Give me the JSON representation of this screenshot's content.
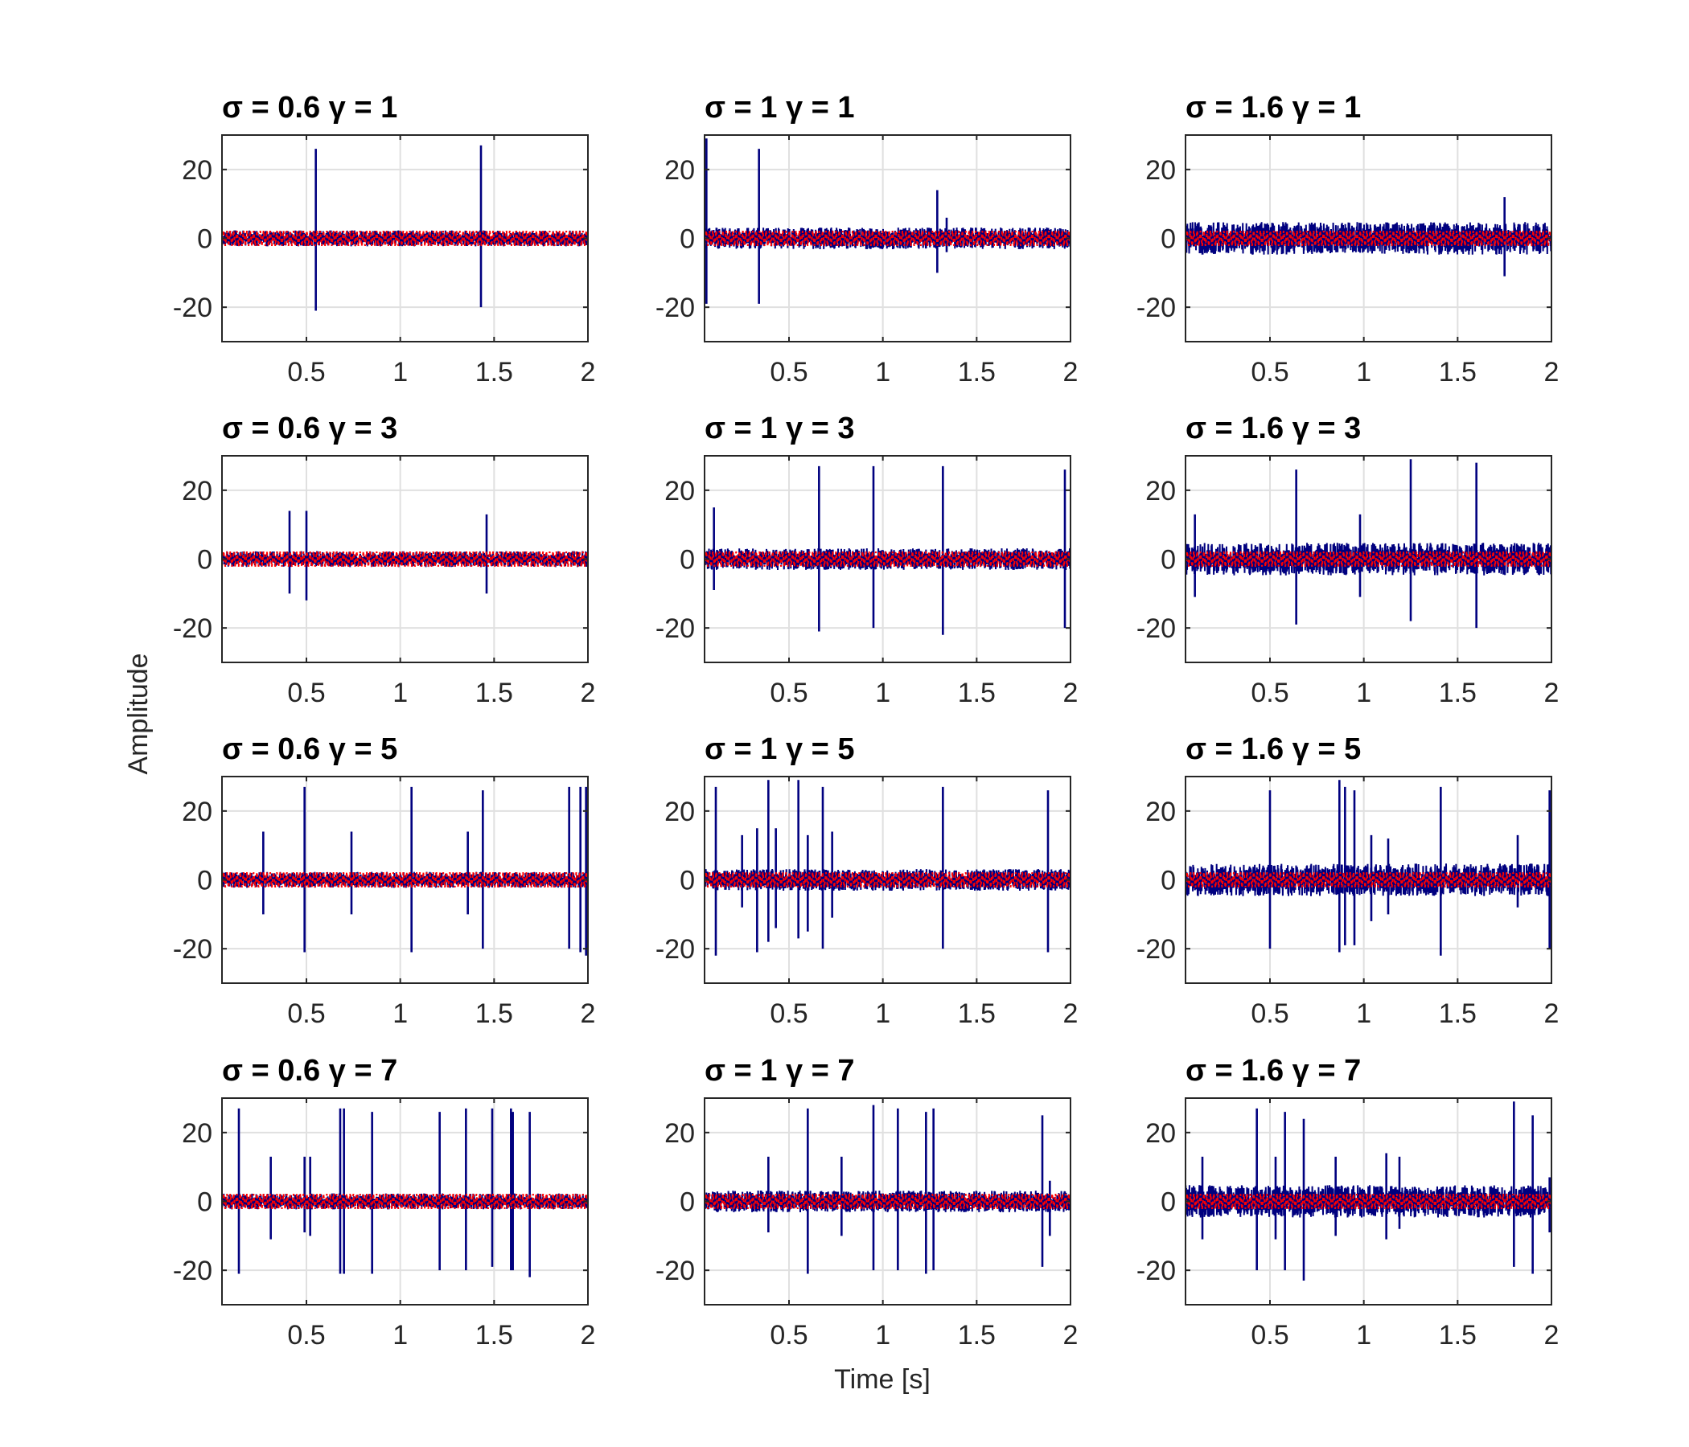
{
  "chart_data": {
    "type": "line",
    "layout": "4x3 grid of subplots",
    "xlabel": "Time [s]",
    "ylabel": "Amplitude",
    "xlim": [
      0.05,
      2
    ],
    "ylim": [
      -30,
      30
    ],
    "x_ticks": [
      0.5,
      1,
      1.5,
      2
    ],
    "x_tick_labels": [
      "0.5",
      "1",
      "1.5",
      "2"
    ],
    "y_ticks": [
      -20,
      0,
      20
    ],
    "y_tick_labels": [
      "-20",
      "0",
      "20"
    ],
    "grid": true,
    "colors": {
      "signal": "#00007f",
      "reference": "#ff0000",
      "axes": "#262626",
      "grid": "#e0e0e0"
    },
    "panels": [
      {
        "title": "σ = 0.6 γ = 1",
        "noise": 2.2,
        "peaks": [
          [
            0.55,
            26,
            -21
          ],
          [
            1.43,
            27,
            -20
          ]
        ]
      },
      {
        "title": "σ = 1 γ = 1",
        "noise": 3.0,
        "peaks": [
          [
            0.06,
            29,
            -19
          ],
          [
            0.34,
            26,
            -19
          ],
          [
            1.29,
            14,
            -10
          ],
          [
            1.34,
            6,
            -4
          ]
        ]
      },
      {
        "title": "σ = 1.6 γ = 1",
        "noise": 4.5,
        "peaks": [
          [
            1.75,
            12,
            -11
          ]
        ]
      },
      {
        "title": "σ = 0.6 γ = 3",
        "noise": 2.2,
        "peaks": [
          [
            0.41,
            14,
            -10
          ],
          [
            0.5,
            14,
            -12
          ],
          [
            1.46,
            13,
            -10
          ]
        ]
      },
      {
        "title": "σ = 1 γ = 3",
        "noise": 3.0,
        "peaks": [
          [
            0.1,
            15,
            -9
          ],
          [
            0.66,
            27,
            -21
          ],
          [
            0.95,
            27,
            -20
          ],
          [
            1.32,
            27,
            -22
          ],
          [
            1.97,
            26,
            -20
          ]
        ]
      },
      {
        "title": "σ = 1.6 γ = 3",
        "noise": 4.5,
        "peaks": [
          [
            0.1,
            13,
            -11
          ],
          [
            0.64,
            26,
            -19
          ],
          [
            0.98,
            13,
            -11
          ],
          [
            1.25,
            29,
            -18
          ],
          [
            1.6,
            28,
            -20
          ]
        ]
      },
      {
        "title": "σ = 0.6 γ = 5",
        "noise": 2.2,
        "peaks": [
          [
            0.27,
            14,
            -10
          ],
          [
            0.49,
            27,
            -21
          ],
          [
            0.74,
            14,
            -10
          ],
          [
            1.06,
            27,
            -21
          ],
          [
            1.36,
            14,
            -10
          ],
          [
            1.44,
            26,
            -20
          ],
          [
            1.9,
            27,
            -20
          ],
          [
            1.96,
            27,
            -21
          ],
          [
            1.99,
            27,
            -22
          ]
        ]
      },
      {
        "title": "σ = 1 γ = 5",
        "noise": 3.0,
        "peaks": [
          [
            0.11,
            27,
            -22
          ],
          [
            0.25,
            13,
            -8
          ],
          [
            0.33,
            15,
            -21
          ],
          [
            0.39,
            29,
            -18
          ],
          [
            0.43,
            15,
            -14
          ],
          [
            0.55,
            29,
            -17
          ],
          [
            0.6,
            13,
            -15
          ],
          [
            0.68,
            27,
            -20
          ],
          [
            0.73,
            14,
            -11
          ],
          [
            1.32,
            27,
            -20
          ],
          [
            1.88,
            26,
            -21
          ]
        ]
      },
      {
        "title": "σ = 1.6 γ = 5",
        "noise": 4.5,
        "peaks": [
          [
            0.5,
            26,
            -20
          ],
          [
            0.87,
            29,
            -21
          ],
          [
            0.9,
            27,
            -19
          ],
          [
            0.95,
            26,
            -19
          ],
          [
            1.04,
            13,
            -12
          ],
          [
            1.13,
            12,
            -10
          ],
          [
            1.41,
            27,
            -22
          ],
          [
            1.82,
            13,
            -8
          ],
          [
            1.99,
            26,
            -20
          ]
        ]
      },
      {
        "title": "σ = 0.6 γ = 7",
        "noise": 2.2,
        "peaks": [
          [
            0.14,
            27,
            -21
          ],
          [
            0.31,
            13,
            -11
          ],
          [
            0.49,
            13,
            -9
          ],
          [
            0.52,
            13,
            -10
          ],
          [
            0.68,
            27,
            -21
          ],
          [
            0.7,
            27,
            -21
          ],
          [
            0.85,
            26,
            -21
          ],
          [
            1.21,
            26,
            -20
          ],
          [
            1.35,
            27,
            -20
          ],
          [
            1.49,
            27,
            -19
          ],
          [
            1.59,
            27,
            -20
          ],
          [
            1.6,
            26,
            -20
          ],
          [
            1.69,
            26,
            -22
          ]
        ]
      },
      {
        "title": "σ = 1 γ = 7",
        "noise": 3.0,
        "peaks": [
          [
            0.39,
            13,
            -9
          ],
          [
            0.6,
            27,
            -21
          ],
          [
            0.78,
            13,
            -10
          ],
          [
            0.95,
            28,
            -20
          ],
          [
            1.08,
            27,
            -20
          ],
          [
            1.23,
            26,
            -21
          ],
          [
            1.27,
            27,
            -20
          ],
          [
            1.85,
            25,
            -19
          ],
          [
            1.89,
            6,
            -10
          ]
        ]
      },
      {
        "title": "σ = 1.6 γ = 7",
        "noise": 4.5,
        "peaks": [
          [
            0.14,
            13,
            -11
          ],
          [
            0.43,
            27,
            -20
          ],
          [
            0.53,
            13,
            -11
          ],
          [
            0.58,
            26,
            -20
          ],
          [
            0.68,
            24,
            -23
          ],
          [
            0.85,
            13,
            -10
          ],
          [
            1.12,
            14,
            -11
          ],
          [
            1.19,
            13,
            -8
          ],
          [
            1.8,
            29,
            -19
          ],
          [
            1.9,
            25,
            -21
          ],
          [
            1.99,
            7,
            -9
          ]
        ]
      }
    ]
  }
}
